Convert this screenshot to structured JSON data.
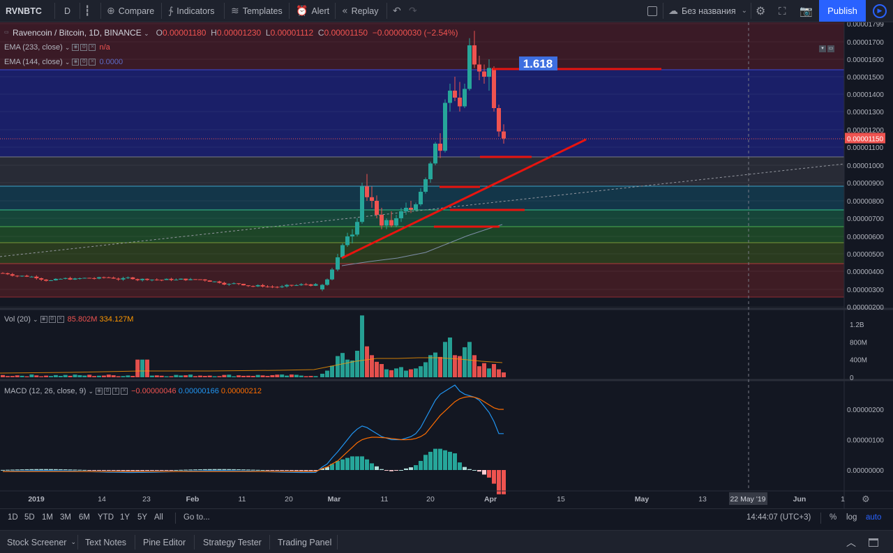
{
  "toolbar": {
    "symbol": "RVNBTC",
    "interval": "D",
    "compare": "Compare",
    "indicators": "Indicators",
    "templates": "Templates",
    "alert": "Alert",
    "replay": "Replay",
    "layout_name": "Без названия",
    "publish": "Publish"
  },
  "legend": {
    "title": "Ravencoin / Bitcoin, 1D, BINANCE",
    "o_label": "O",
    "o": "0.00001180",
    "h_label": "H",
    "h": "0.00001230",
    "l_label": "L",
    "l": "0.00001112",
    "c_label": "C",
    "c": "0.00001150",
    "change": "−0.00000030 (−2.54%)",
    "ema233_label": "EMA (233, close)",
    "ema233_value": "n/a",
    "ema144_label": "EMA (144, close)",
    "ema144_value": "0.0000",
    "vol_label": "Vol (20)",
    "vol_value1": "85.802M",
    "vol_value2": "334.127M",
    "macd_label": "MACD (12, 26, close, 9)",
    "macd_v1": "−0.00000046",
    "macd_v2": "0.00000166",
    "macd_v3": "0.00000212"
  },
  "fib_label": "1.618",
  "price_axis": {
    "labels": [
      "0.00001799",
      "0.00001700",
      "0.00001600",
      "0.00001500",
      "0.00001400",
      "0.00001300",
      "0.00001200",
      "0.00001150",
      "0.00001100",
      "0.00001000",
      "0.00000900",
      "0.00000800",
      "0.00000700",
      "0.00000600",
      "0.00000500",
      "0.00000400",
      "0.00000300",
      "0.00000200"
    ],
    "current": "0.00001150"
  },
  "vol_axis": [
    "1.2B",
    "800M",
    "400M",
    "0"
  ],
  "macd_axis": [
    "0.00000200",
    "0.00000100",
    "0.00000000"
  ],
  "time_axis": {
    "labels": [
      "2019",
      "14",
      "23",
      "Feb",
      "11",
      "20",
      "Mar",
      "11",
      "20",
      "Apr",
      "15",
      "May",
      "13",
      "Jun",
      "1"
    ],
    "cursor_label": "22 May '19"
  },
  "timeframes": [
    "1D",
    "5D",
    "1M",
    "3M",
    "6M",
    "YTD",
    "1Y",
    "5Y",
    "All"
  ],
  "goto": "Go to...",
  "clock": "14:44:07 (UTC+3)",
  "scale_opts": {
    "percent": "%",
    "log": "log",
    "auto": "auto"
  },
  "tabs": [
    "Stock Screener",
    "Text Notes",
    "Pine Editor",
    "Strategy Tester",
    "Trading Panel"
  ],
  "colors": {
    "bg": "#131722",
    "up": "#26a69a",
    "down": "#ef5350",
    "accent": "#2962ff",
    "trend": "#e8140f",
    "macd": "#2196f3",
    "signal": "#ff6d00"
  }
}
